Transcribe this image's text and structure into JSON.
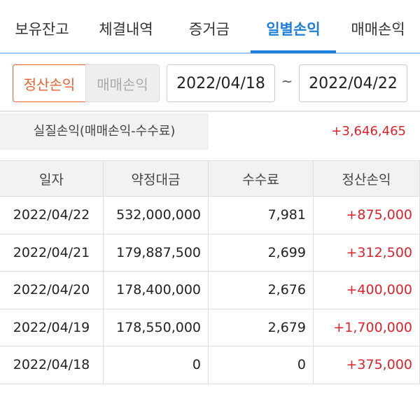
{
  "tabs": {
    "items": [
      "보유잔고",
      "체결내역",
      "증거금",
      "일별손익",
      "매매손익"
    ],
    "active": 3
  },
  "filter": {
    "toggle": [
      "정산손익",
      "매매손익"
    ],
    "active": 0,
    "date_from": "2022/04/18",
    "separator": "~",
    "date_to": "2022/04/22"
  },
  "summary": {
    "label": "실질손익(매매손익-수수료)",
    "value": "+3,646,465"
  },
  "table": {
    "header": [
      "일자",
      "약정대금",
      "수수료",
      "정산손익"
    ],
    "rows": [
      [
        "2022/04/22",
        "532,000,000",
        "7,981",
        "+875,000"
      ],
      [
        "2022/04/21",
        "179,887,500",
        "2,699",
        "+312,500"
      ],
      [
        "2022/04/20",
        "178,400,000",
        "2,676",
        "+400,000"
      ],
      [
        "2022/04/19",
        "178,550,000",
        "2,679",
        "+1,700,000"
      ],
      [
        "2022/04/18",
        "0",
        "0",
        "+375,000"
      ]
    ]
  }
}
